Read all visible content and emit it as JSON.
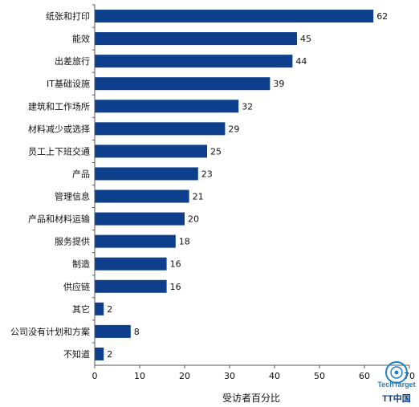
{
  "chart_data": {
    "type": "bar",
    "orientation": "horizontal",
    "title": "",
    "xlabel": "受访者百分比",
    "ylabel": "",
    "xlim": [
      0,
      70
    ],
    "xticks": [
      0,
      10,
      20,
      30,
      40,
      50,
      60,
      70
    ],
    "grid": false,
    "bar_color": "#0d3f8c",
    "categories": [
      "纸张和打印",
      "能效",
      "出差旅行",
      "IT基础设施",
      "建筑和工作场所",
      "材料减少或选择",
      "员工上下班交通",
      "产品",
      "管理信息",
      "产品和材料运输",
      "服务提供",
      "制造",
      "供应链",
      "其它",
      "公司没有计划和方案",
      "不知道"
    ],
    "values": [
      62,
      45,
      44,
      39,
      32,
      29,
      25,
      23,
      21,
      20,
      18,
      16,
      16,
      2,
      8,
      2
    ]
  },
  "logo": {
    "line1": "TechTarget",
    "line2": "TT中国",
    "accent": "#1f7fc4",
    "dark": "#0d3f8c"
  }
}
